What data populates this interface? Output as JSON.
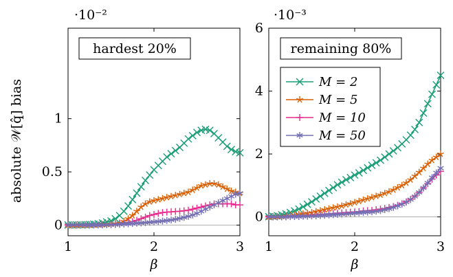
{
  "figure": {
    "ylabel": "absolute 𝒲[q̂] bias",
    "colors": {
      "M=2": "#1b9e77",
      "M=5": "#d95f02",
      "M=10": "#e7298a",
      "M=50": "#7570b3"
    }
  },
  "chart_data": [
    {
      "type": "line",
      "title": "hardest 20%",
      "xlabel": "β",
      "ylabel": "absolute 𝒲[q̂] bias",
      "scale_label": "·10⁻²",
      "xlim": [
        1,
        3
      ],
      "ylim": [
        -0.001,
        0.0185
      ],
      "xticks": [
        "1",
        "2",
        "3"
      ],
      "yticks": [
        {
          "value": 0,
          "label": "0"
        },
        {
          "value": 0.005,
          "label": "0.5"
        },
        {
          "value": 0.01,
          "label": "1"
        }
      ],
      "grid": false,
      "x": [
        1.0,
        1.05,
        1.1,
        1.15,
        1.2,
        1.25,
        1.3,
        1.35,
        1.4,
        1.45,
        1.5,
        1.55,
        1.6,
        1.65,
        1.7,
        1.75,
        1.8,
        1.85,
        1.9,
        1.95,
        2.0,
        2.05,
        2.1,
        2.15,
        2.2,
        2.25,
        2.3,
        2.35,
        2.4,
        2.45,
        2.5,
        2.55,
        2.6,
        2.65,
        2.7,
        2.75,
        2.8,
        2.85,
        2.9,
        2.95,
        3.0
      ],
      "series": [
        {
          "name": "M = 2",
          "values": [
            2e-05,
            2e-05,
            2e-05,
            3e-05,
            4e-05,
            6e-05,
            9e-05,
            0.00013,
            0.0002,
            0.0003,
            0.0004,
            0.0006,
            0.0009,
            0.0013,
            0.0018,
            0.0024,
            0.003,
            0.0036,
            0.0042,
            0.0047,
            0.0052,
            0.0056,
            0.006,
            0.0064,
            0.0067,
            0.007,
            0.0073,
            0.0077,
            0.0081,
            0.0084,
            0.0087,
            0.0089,
            0.009,
            0.0089,
            0.0086,
            0.0082,
            0.0078,
            0.0074,
            0.0071,
            0.0069,
            0.0068
          ]
        },
        {
          "name": "M = 5",
          "values": [
            1e-05,
            1e-05,
            1e-05,
            1e-05,
            2e-05,
            2e-05,
            3e-05,
            4e-05,
            6e-05,
            8e-05,
            0.00011,
            0.00015,
            0.0002,
            0.00035,
            0.0006,
            0.0009,
            0.0013,
            0.0017,
            0.002,
            0.0022,
            0.0023,
            0.0024,
            0.0025,
            0.0026,
            0.0027,
            0.0028,
            0.0029,
            0.003,
            0.0031,
            0.0033,
            0.0035,
            0.0037,
            0.0038,
            0.0039,
            0.0039,
            0.0038,
            0.0036,
            0.0034,
            0.0032,
            0.0031,
            0.003
          ]
        },
        {
          "name": "M = 10",
          "values": [
            0.0,
            0.0,
            0.0,
            0.0,
            1e-05,
            1e-05,
            2e-05,
            3e-05,
            4e-05,
            5e-05,
            7e-05,
            0.0001,
            0.00013,
            0.00018,
            0.00025,
            0.00033,
            0.00045,
            0.0006,
            0.00075,
            0.0009,
            0.001,
            0.0011,
            0.00118,
            0.00122,
            0.00125,
            0.00128,
            0.0013,
            0.00135,
            0.0014,
            0.0015,
            0.0016,
            0.0017,
            0.0018,
            0.0019,
            0.002,
            0.002,
            0.002,
            0.002,
            0.002,
            0.0019,
            0.0019
          ]
        },
        {
          "name": "M = 50",
          "values": [
            0.0,
            0.0,
            0.0,
            0.0,
            0.0,
            0.0,
            1e-05,
            1e-05,
            2e-05,
            3e-05,
            4e-05,
            5e-05,
            7e-05,
            0.0001,
            0.00012,
            0.00015,
            0.00018,
            0.0002,
            0.00023,
            0.00027,
            0.0003,
            0.00034,
            0.00038,
            0.00043,
            0.00048,
            0.00055,
            0.00063,
            0.00072,
            0.00082,
            0.00095,
            0.0011,
            0.0013,
            0.0015,
            0.0017,
            0.0019,
            0.0021,
            0.0023,
            0.0025,
            0.0027,
            0.0029,
            0.003
          ]
        }
      ]
    },
    {
      "type": "line",
      "title": "remaining 80%",
      "xlabel": "β",
      "ylabel": "",
      "scale_label": "·10⁻³",
      "xlim": [
        1,
        3
      ],
      "ylim": [
        -0.0006,
        0.006
      ],
      "xticks": [
        "1",
        "2",
        "3"
      ],
      "yticks": [
        {
          "value": 0,
          "label": "0"
        },
        {
          "value": 0.002,
          "label": "2"
        },
        {
          "value": 0.004,
          "label": "4"
        },
        {
          "value": 0.006,
          "label": "6"
        }
      ],
      "grid": false,
      "legend": {
        "position": "top-left",
        "entries": [
          "M = 2",
          "M = 5",
          "M = 10",
          "M = 50"
        ]
      },
      "x": [
        1.0,
        1.05,
        1.1,
        1.15,
        1.2,
        1.25,
        1.3,
        1.35,
        1.4,
        1.45,
        1.5,
        1.55,
        1.6,
        1.65,
        1.7,
        1.75,
        1.8,
        1.85,
        1.9,
        1.95,
        2.0,
        2.05,
        2.1,
        2.15,
        2.2,
        2.25,
        2.3,
        2.35,
        2.4,
        2.45,
        2.5,
        2.55,
        2.6,
        2.65,
        2.7,
        2.75,
        2.8,
        2.85,
        2.9,
        2.95,
        3.0
      ],
      "series": [
        {
          "name": "M = 2",
          "values": [
            1e-05,
            2e-05,
            4e-05,
            7e-05,
            0.0001,
            0.00014,
            0.00019,
            0.00025,
            0.00032,
            0.0004,
            0.00048,
            0.00057,
            0.00066,
            0.00075,
            0.00084,
            0.00093,
            0.00102,
            0.0011,
            0.00118,
            0.00125,
            0.00133,
            0.0014,
            0.00148,
            0.00156,
            0.00164,
            0.00172,
            0.0018,
            0.0019,
            0.002,
            0.0021,
            0.0022,
            0.00232,
            0.00245,
            0.0026,
            0.00278,
            0.003,
            0.0033,
            0.0036,
            0.0039,
            0.0042,
            0.0045
          ]
        },
        {
          "name": "M = 5",
          "values": [
            0.0,
            1e-05,
            1e-05,
            2e-05,
            3e-05,
            4e-05,
            6e-05,
            8e-05,
            0.0001,
            0.00012,
            0.00014,
            0.00017,
            0.0002,
            0.00023,
            0.00026,
            0.00029,
            0.00032,
            0.00035,
            0.00039,
            0.00042,
            0.00046,
            0.0005,
            0.00054,
            0.00058,
            0.00062,
            0.00066,
            0.0007,
            0.00075,
            0.0008,
            0.00086,
            0.00093,
            0.001,
            0.00108,
            0.00118,
            0.0013,
            0.00142,
            0.00155,
            0.00168,
            0.0018,
            0.0019,
            0.002
          ]
        },
        {
          "name": "M = 10",
          "values": [
            0.0,
            0.0,
            0.0,
            1e-05,
            1e-05,
            2e-05,
            2e-05,
            3e-05,
            4e-05,
            5e-05,
            6e-05,
            7e-05,
            8e-05,
            9e-05,
            0.0001,
            0.00011,
            0.00012,
            0.00013,
            0.00014,
            0.00015,
            0.00016,
            0.00017,
            0.00019,
            0.0002,
            0.00021,
            0.00023,
            0.00025,
            0.00027,
            0.0003,
            0.00033,
            0.00037,
            0.00042,
            0.00048,
            0.00056,
            0.00066,
            0.00078,
            0.00092,
            0.00106,
            0.0012,
            0.00133,
            0.00145
          ]
        },
        {
          "name": "M = 50",
          "values": [
            0.0,
            0.0,
            0.0,
            0.0,
            0.0,
            1e-05,
            1e-05,
            1e-05,
            2e-05,
            2e-05,
            3e-05,
            3e-05,
            4e-05,
            5e-05,
            6e-05,
            7e-05,
            8e-05,
            9e-05,
            0.0001,
            0.00011,
            0.00012,
            0.00013,
            0.00014,
            0.00015,
            0.00016,
            0.00018,
            0.0002,
            0.00023,
            0.00026,
            0.0003,
            0.00035,
            0.0004,
            0.00047,
            0.00055,
            0.00065,
            0.00078,
            0.00092,
            0.00108,
            0.00125,
            0.0014,
            0.00155
          ]
        }
      ]
    }
  ]
}
